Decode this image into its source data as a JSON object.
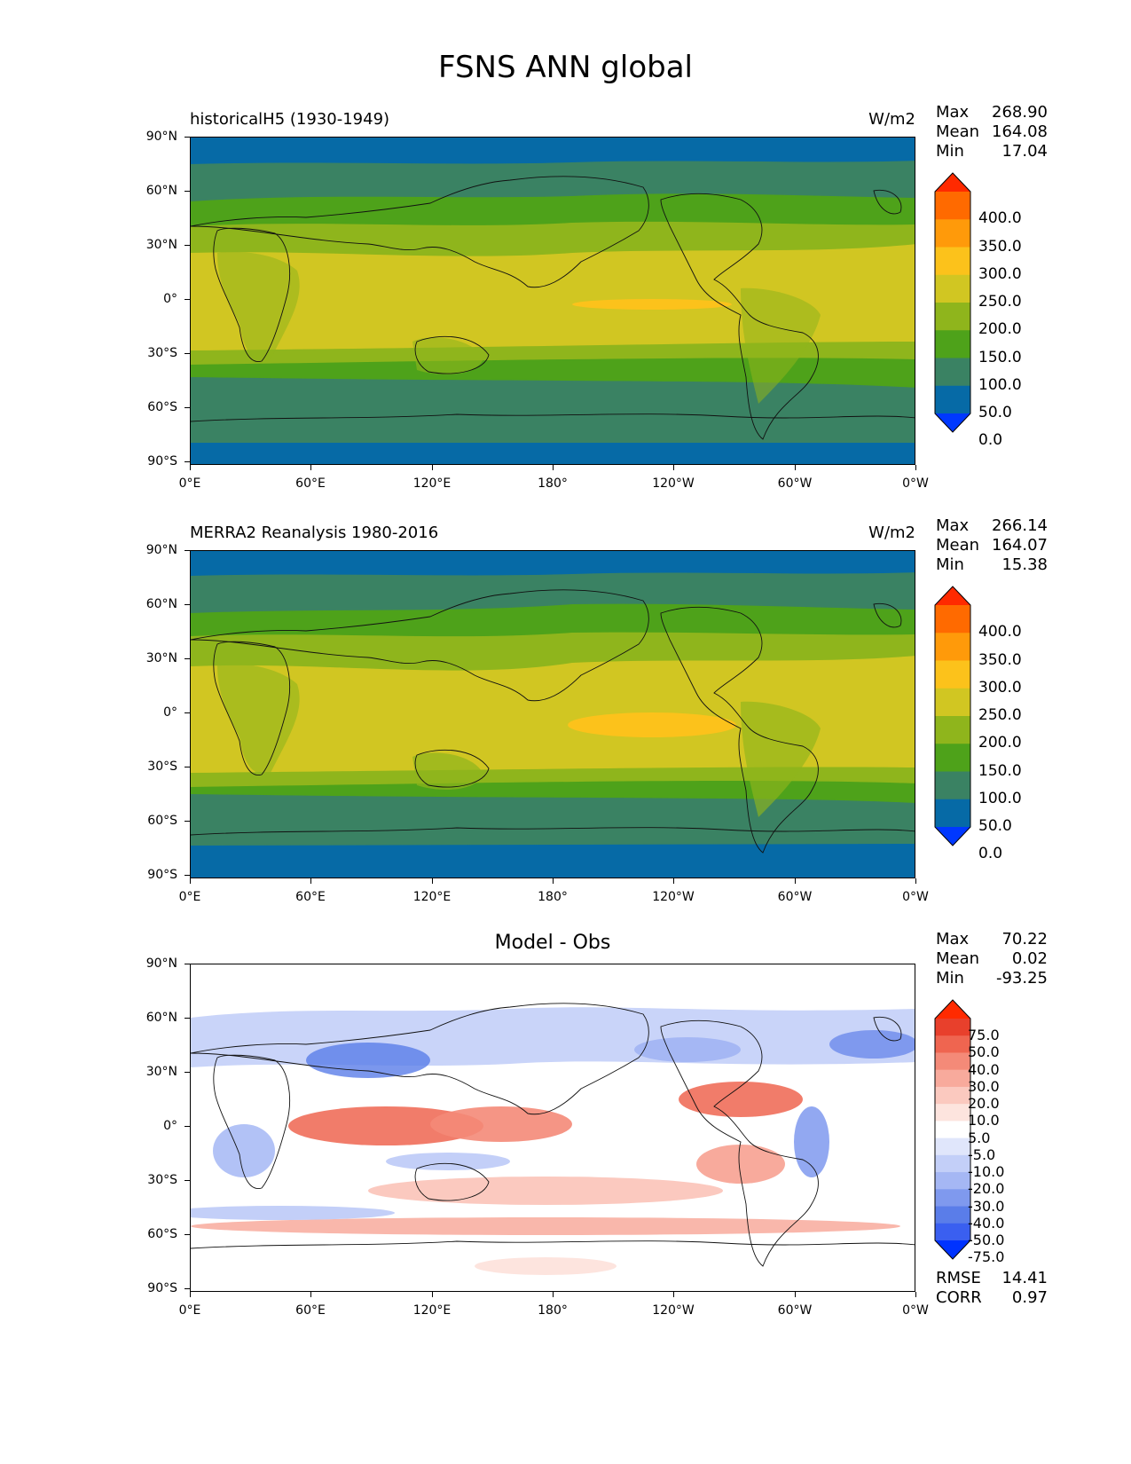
{
  "figure_title": "FSNS ANN global",
  "y_ticks": [
    "90°N",
    "60°N",
    "30°N",
    "0°",
    "30°S",
    "60°S",
    "90°S"
  ],
  "x_ticks": [
    "0°E",
    "60°E",
    "120°E",
    "180°",
    "120°W",
    "60°W",
    "0°W"
  ],
  "panels": [
    {
      "title": "historicalH5 (1930-1949)",
      "units": "W/m2",
      "stats": [
        {
          "label": "Max",
          "value": "268.90"
        },
        {
          "label": "Mean",
          "value": "164.08"
        },
        {
          "label": "Min",
          "value": "17.04"
        }
      ]
    },
    {
      "title": "MERRA2 Reanalysis 1980-2016",
      "units": "W/m2",
      "stats": [
        {
          "label": "Max",
          "value": "266.14"
        },
        {
          "label": "Mean",
          "value": "164.07"
        },
        {
          "label": "Min",
          "value": "15.38"
        }
      ]
    },
    {
      "title": "Model - Obs",
      "units": "",
      "stats": [
        {
          "label": "Max",
          "value": "70.22"
        },
        {
          "label": "Mean",
          "value": "0.02"
        },
        {
          "label": "Min",
          "value": "-93.25"
        }
      ],
      "metrics": [
        {
          "label": "RMSE",
          "value": "14.41"
        },
        {
          "label": "CORR",
          "value": "0.97"
        }
      ]
    }
  ],
  "colorbar_field": {
    "labels": [
      "400.0",
      "350.0",
      "300.0",
      "250.0",
      "200.0",
      "150.0",
      "100.0",
      "50.0",
      "0.0"
    ],
    "colors": [
      "#ff2a00",
      "#ff6a00",
      "#ff9a0a",
      "#fcc21b",
      "#d1c622",
      "#8fb51c",
      "#4ea21a",
      "#3a8263",
      "#066aa6",
      "#0038ff"
    ]
  },
  "colorbar_diff": {
    "labels": [
      "75.0",
      "50.0",
      "40.0",
      "30.0",
      "20.0",
      "10.0",
      "5.0",
      "-5.0",
      "-10.0",
      "-20.0",
      "-30.0",
      "-40.0",
      "-50.0",
      "-75.0"
    ],
    "colors": [
      "#ff2a00",
      "#e8402c",
      "#ef6550",
      "#f48a78",
      "#f8aa9c",
      "#fbc9bf",
      "#fde4de",
      "#ffffff",
      "#e0e6fb",
      "#c3cff8",
      "#a5b7f4",
      "#7f99ee",
      "#5a7de9",
      "#3a5ff0",
      "#0033ff"
    ]
  }
}
